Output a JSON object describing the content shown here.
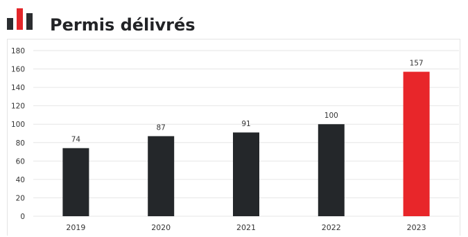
{
  "title": "Permis délivrés",
  "logo": {
    "icon": "bar-chart-logo-icon",
    "colors": [
      "#2b2d30",
      "#e3262a",
      "#2b2d30"
    ]
  },
  "colors": {
    "default_bar": "#24272a",
    "highlight_bar": "#e8262a",
    "grid": "#e6e6e6",
    "axis_text": "#333333",
    "title_text": "#222326"
  },
  "chart_data": {
    "type": "bar",
    "title": "Permis délivrés",
    "xlabel": "",
    "ylabel": "",
    "categories": [
      "2019",
      "2020",
      "2021",
      "2022",
      "2023"
    ],
    "values": [
      74,
      87,
      91,
      100,
      157
    ],
    "data_labels": [
      "74",
      "87",
      "91",
      "100",
      "157"
    ],
    "highlight_index": 4,
    "ylim": [
      0,
      180
    ],
    "y_ticks": [
      0,
      20,
      40,
      60,
      80,
      100,
      120,
      140,
      160,
      180
    ],
    "grid": true,
    "legend": "none"
  }
}
